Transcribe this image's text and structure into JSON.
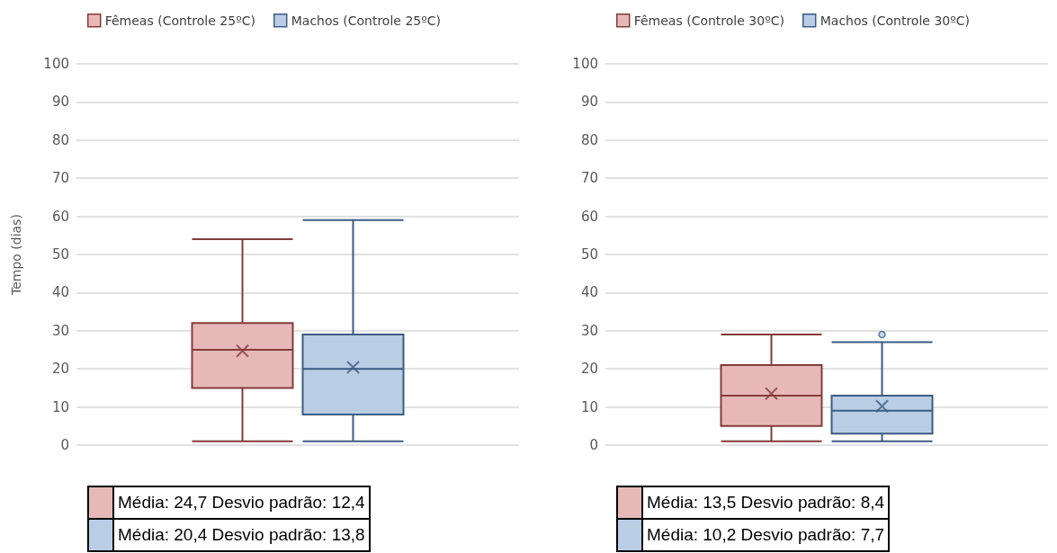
{
  "chart_data": [
    {
      "type": "box",
      "ylabel": "Tempo (dias)",
      "categories": [
        null
      ],
      "ylim": [
        0,
        100
      ],
      "yticks": [
        0,
        10,
        20,
        30,
        40,
        50,
        60,
        70,
        80,
        90,
        100
      ],
      "grid": "y",
      "legend": "top",
      "series": [
        {
          "name": "Fêmeas (Controle 25ºC)",
          "color": "#e6b9b8",
          "boxes": [
            {
              "low": 1,
              "q1": 15,
              "median": 25,
              "q3": 32,
              "high": 54,
              "mean": 24.7
            }
          ]
        },
        {
          "name": "Machos (Controle 25ºC)",
          "color": "#b9cde5",
          "boxes": [
            {
              "low": 1,
              "q1": 8,
              "median": 20,
              "q3": 29,
              "high": 59,
              "mean": 20.4
            }
          ]
        }
      ],
      "annotations": [
        "Média: 24,7 Desvio padrão: 12,4",
        "Média: 20,4 Desvio padrão: 13,8"
      ]
    },
    {
      "type": "box",
      "categories": [
        null
      ],
      "ylim": [
        0,
        100
      ],
      "yticks": [
        0,
        10,
        20,
        30,
        40,
        50,
        60,
        70,
        80,
        90,
        100
      ],
      "grid": "y",
      "legend": "top",
      "series": [
        {
          "name": "Fêmeas (Controle 30ºC)",
          "color": "#e6b9b8",
          "boxes": [
            {
              "low": 1,
              "q1": 5,
              "median": 13,
              "q3": 21,
              "high": 29,
              "mean": 13.5
            }
          ]
        },
        {
          "name": "Machos (Controle 30ºC)",
          "color": "#b9cde5",
          "boxes": [
            {
              "low": 1,
              "q1": 3,
              "median": 9,
              "q3": 13,
              "high": 27,
              "mean": 10.2,
              "outliers": [
                29
              ]
            }
          ]
        }
      ],
      "annotations": [
        "Média: 13,5 Desvio padrão: 8,4",
        "Média: 10,2 Desvio padrão: 7,7"
      ]
    }
  ]
}
